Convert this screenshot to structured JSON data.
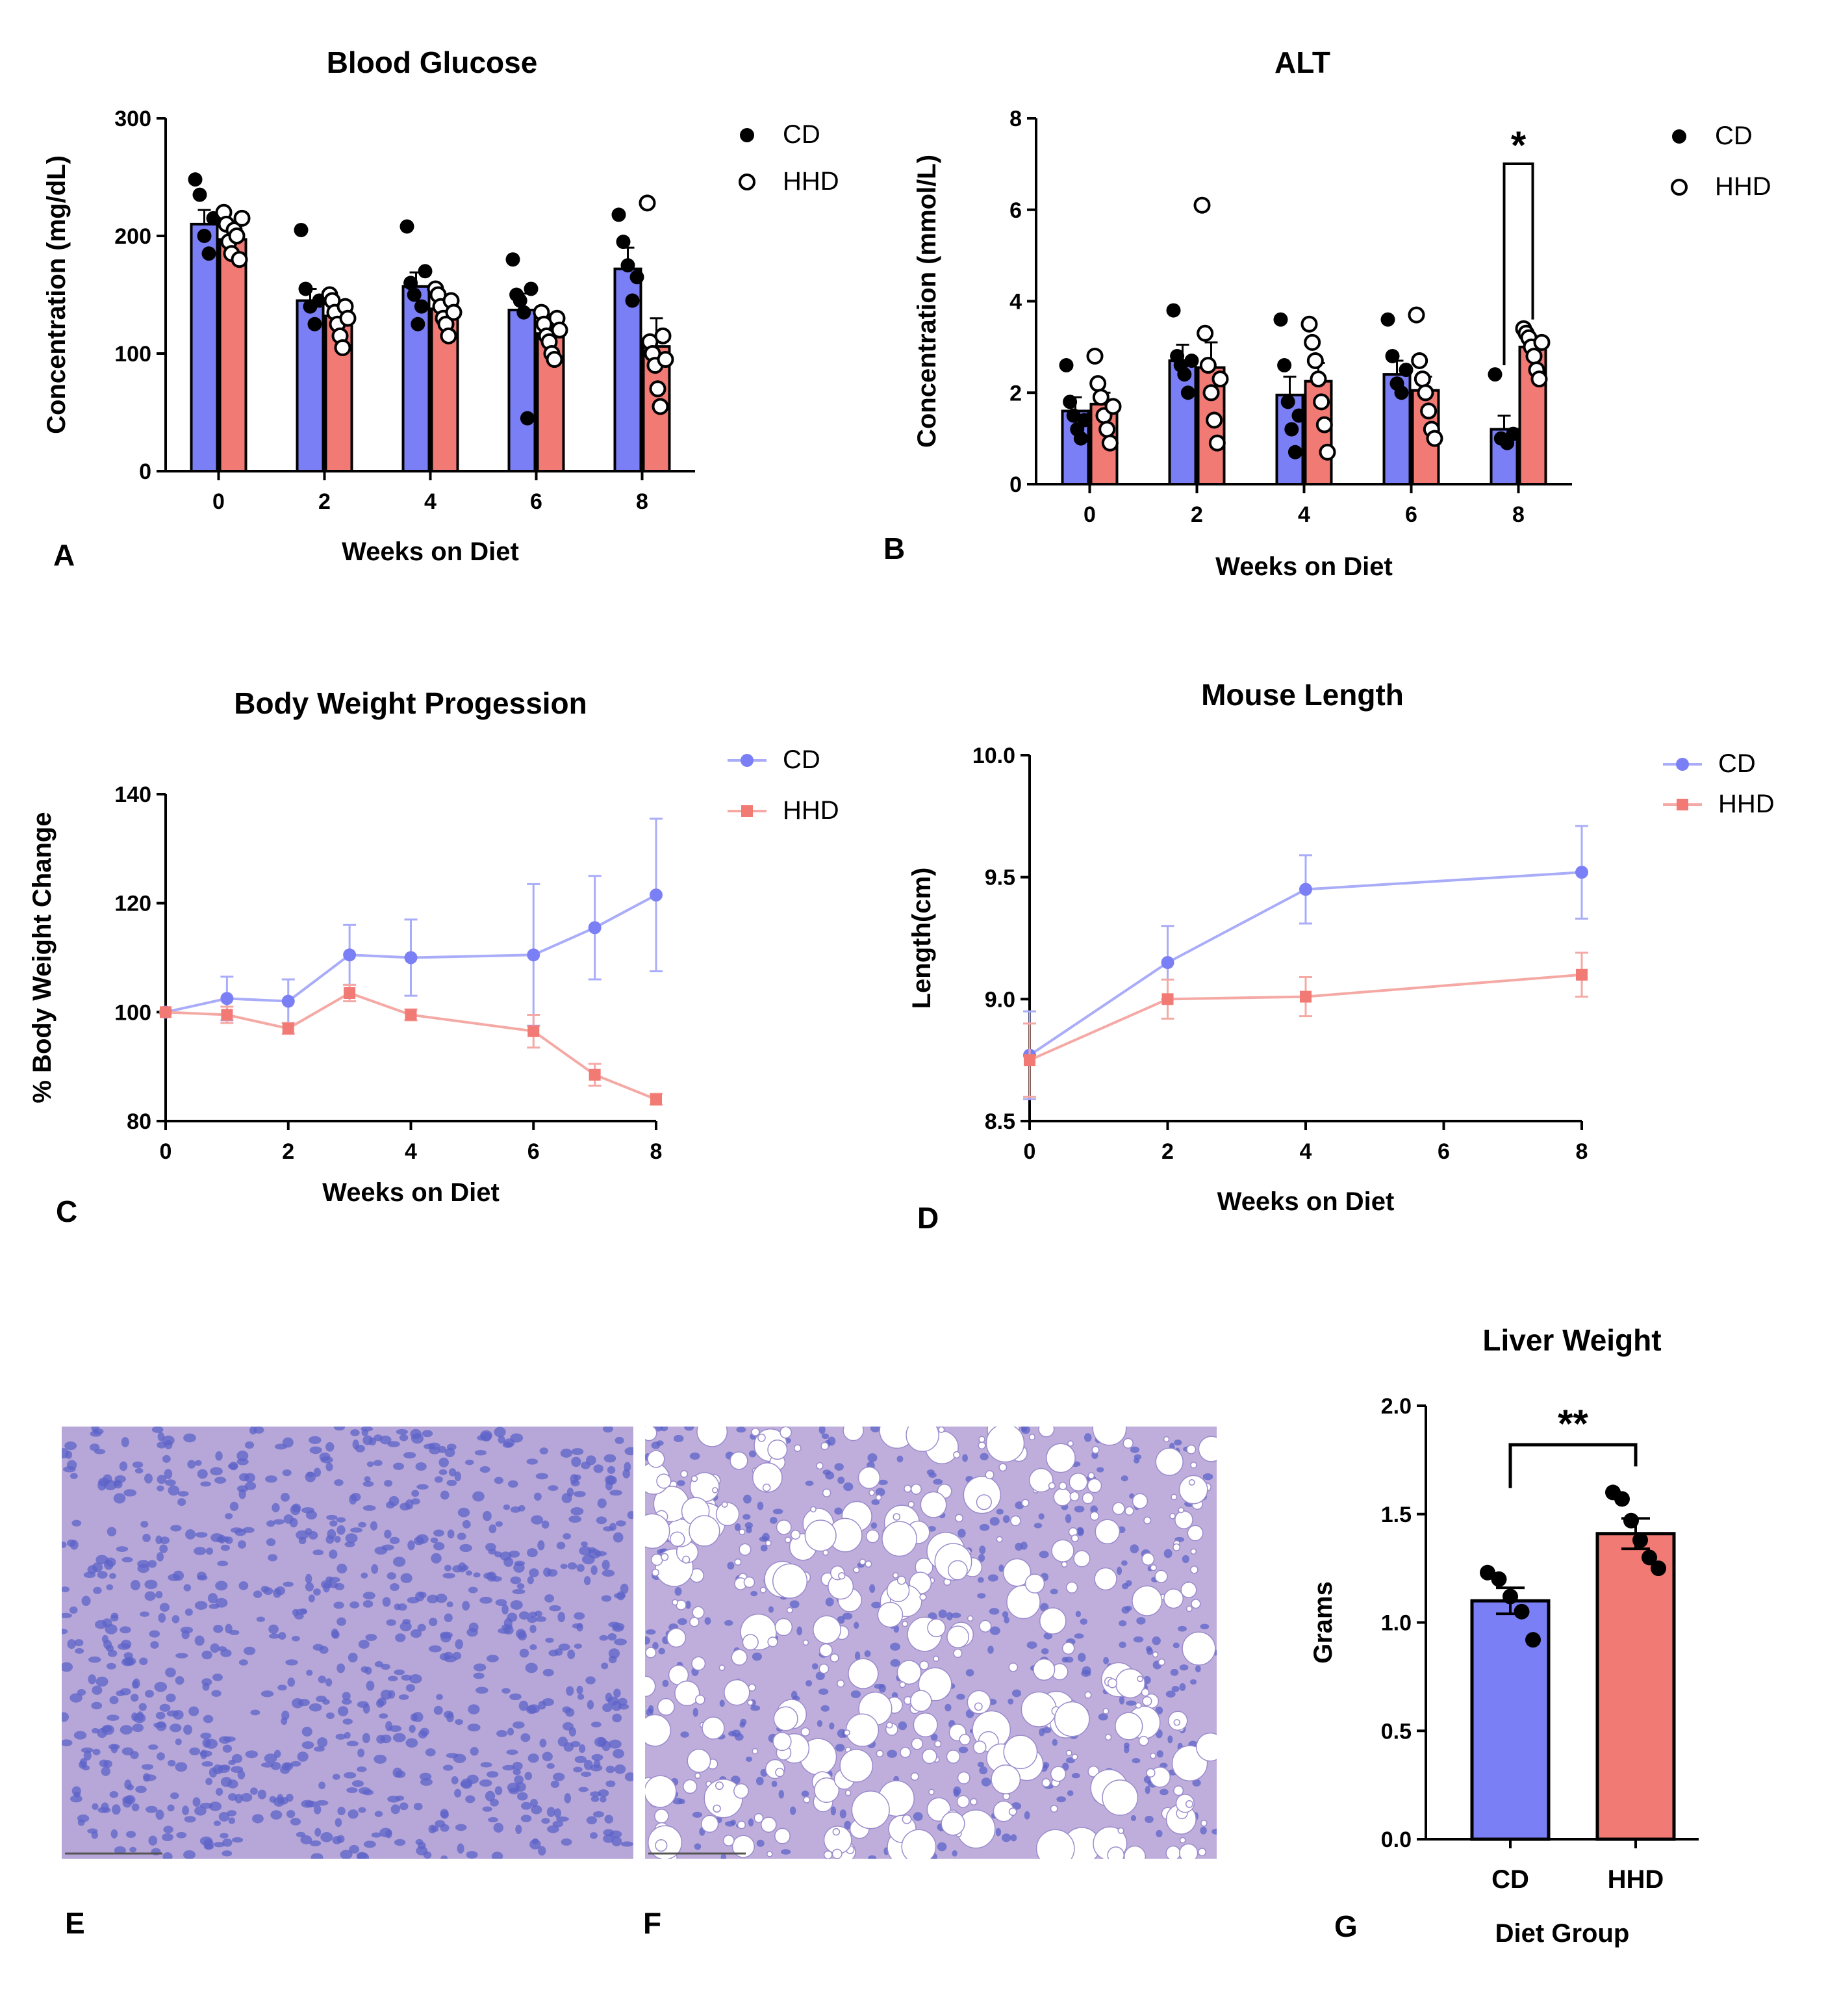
{
  "colors": {
    "cd": "#7b7ff5",
    "hhd": "#f27a74",
    "cd_line": "#a9acf8",
    "hhd_line": "#f5a9a5",
    "histo_bg": "#b7a6d8",
    "histo_nuclei": "#5c63c8"
  },
  "panel_letters": [
    "A",
    "B",
    "C",
    "D",
    "E",
    "F",
    "G"
  ],
  "chart_data": [
    {
      "panel": "A",
      "type": "bar",
      "title": "Blood Glucose",
      "xlabel": "Weeks on Diet",
      "ylabel": "Concentration (mg/dL)",
      "ylim": [
        0,
        300
      ],
      "yticks": [
        0,
        100,
        200,
        300
      ],
      "categories": [
        "0",
        "2",
        "4",
        "6",
        "8"
      ],
      "legend": [
        "CD",
        "HHD"
      ],
      "series": [
        {
          "name": "CD",
          "values": [
            210,
            145,
            157,
            137,
            172
          ],
          "errors": [
            12,
            10,
            12,
            14,
            18
          ],
          "points": [
            [
              248,
              235,
              200,
              185,
              215
            ],
            [
              205,
              155,
              140,
              125,
              145
            ],
            [
              208,
              160,
              150,
              125,
              140,
              170
            ],
            [
              180,
              150,
              145,
              135,
              45,
              155
            ],
            [
              218,
              195,
              175,
              145,
              165
            ]
          ]
        },
        {
          "name": "HHD",
          "values": [
            197,
            132,
            138,
            117,
            106
          ],
          "errors": [
            8,
            8,
            8,
            7,
            24
          ],
          "points": [
            [
              220,
              210,
              195,
              185,
              205,
              200,
              180,
              215
            ],
            [
              150,
              145,
              135,
              125,
              115,
              105,
              140,
              130
            ],
            [
              155,
              150,
              140,
              130,
              125,
              115,
              145,
              135
            ],
            [
              135,
              125,
              115,
              110,
              100,
              95,
              130,
              120
            ],
            [
              228,
              110,
              100,
              90,
              70,
              55,
              115,
              95
            ]
          ]
        }
      ],
      "annotations": []
    },
    {
      "panel": "B",
      "type": "bar",
      "title": "ALT",
      "xlabel": "Weeks on Diet",
      "ylabel": "Concentration (mmol/L)",
      "ylim": [
        0,
        8
      ],
      "yticks": [
        0,
        2,
        4,
        6,
        8
      ],
      "categories": [
        "0",
        "2",
        "4",
        "6",
        "8"
      ],
      "legend": [
        "CD",
        "HHD"
      ],
      "series": [
        {
          "name": "CD",
          "values": [
            1.6,
            2.7,
            1.95,
            2.4,
            1.2
          ],
          "errors": [
            0.3,
            0.35,
            0.4,
            0.3,
            0.3
          ],
          "points": [
            [
              2.6,
              1.8,
              1.5,
              1.2,
              1.0,
              1.4
            ],
            [
              3.8,
              2.8,
              2.6,
              2.4,
              2.0,
              2.7
            ],
            [
              3.6,
              2.6,
              1.8,
              1.2,
              0.7,
              1.5
            ],
            [
              3.6,
              2.8,
              2.2,
              2.0,
              2.5
            ],
            [
              2.4,
              1.0,
              0.9,
              1.1
            ]
          ]
        },
        {
          "name": "HHD",
          "values": [
            1.75,
            2.55,
            2.25,
            2.05,
            3.0
          ],
          "errors": [
            0.25,
            0.55,
            0.4,
            0.3,
            0.2
          ],
          "points": [
            [
              2.8,
              2.2,
              1.9,
              1.5,
              1.2,
              0.9,
              1.7
            ],
            [
              6.1,
              3.3,
              2.6,
              2.0,
              1.4,
              0.9,
              2.3
            ],
            [
              3.5,
              3.1,
              2.7,
              2.3,
              1.8,
              1.3,
              0.7
            ],
            [
              3.7,
              2.7,
              2.3,
              2.0,
              1.6,
              1.2,
              1.0
            ],
            [
              3.4,
              3.3,
              3.2,
              3.0,
              2.8,
              2.5,
              2.3,
              3.1
            ]
          ]
        }
      ],
      "annotations": [
        {
          "text": "*",
          "between": [
            "CD",
            "HHD"
          ],
          "category": "8"
        }
      ]
    },
    {
      "panel": "C",
      "type": "line",
      "title": "Body Weight Progession",
      "xlabel": "Weeks on Diet",
      "ylabel": "% Body Weight Change",
      "xlim": [
        0,
        8
      ],
      "ylim": [
        80,
        140
      ],
      "xticks": [
        0,
        2,
        4,
        6,
        8
      ],
      "yticks": [
        80,
        100,
        120,
        140
      ],
      "legend": [
        "CD",
        "HHD"
      ],
      "series": [
        {
          "name": "CD",
          "marker": "circle",
          "x": [
            0,
            1,
            2,
            3,
            4,
            6,
            7,
            8
          ],
          "y": [
            100,
            102.5,
            102,
            110.5,
            110,
            110.5,
            115.5,
            121.5
          ],
          "errors": [
            0,
            4,
            4,
            5.5,
            7,
            13,
            9.5,
            14
          ]
        },
        {
          "name": "HHD",
          "marker": "square",
          "x": [
            0,
            1,
            2,
            3,
            4,
            6,
            7,
            8
          ],
          "y": [
            100,
            99.5,
            97,
            103.5,
            99.5,
            96.5,
            88.5,
            84
          ],
          "errors": [
            0,
            1.5,
            1,
            1.5,
            1,
            3,
            2,
            1
          ]
        }
      ]
    },
    {
      "panel": "D",
      "type": "line",
      "title": "Mouse Length",
      "xlabel": "Weeks on Diet",
      "ylabel": "Length(cm)",
      "xlim": [
        0,
        8
      ],
      "ylim": [
        8.5,
        10.0
      ],
      "xticks": [
        0,
        2,
        4,
        6,
        8
      ],
      "yticks": [
        "8.5",
        "9.0",
        "9.5",
        "10.0"
      ],
      "legend": [
        "CD",
        "HHD"
      ],
      "series": [
        {
          "name": "CD",
          "marker": "circle",
          "x": [
            0,
            2,
            4,
            8
          ],
          "y": [
            8.77,
            9.15,
            9.45,
            9.52
          ],
          "errors": [
            0.18,
            0.15,
            0.14,
            0.19
          ]
        },
        {
          "name": "HHD",
          "marker": "square",
          "x": [
            0,
            2,
            4,
            8
          ],
          "y": [
            8.75,
            9.0,
            9.01,
            9.1
          ],
          "errors": [
            0.15,
            0.08,
            0.08,
            0.09
          ]
        }
      ]
    },
    {
      "panel": "G",
      "type": "bar",
      "title": "Liver Weight",
      "xlabel": "Diet Group",
      "ylabel": "Grams",
      "ylim": [
        0,
        2.0
      ],
      "yticks": [
        "0.0",
        "0.5",
        "1.0",
        "1.5",
        "2.0"
      ],
      "categories": [
        "CD",
        "HHD"
      ],
      "series": [
        {
          "name": "Liver Weight",
          "values": [
            1.1,
            1.41
          ],
          "errors": [
            0.06,
            0.07
          ],
          "points": [
            [
              1.23,
              1.2,
              1.12,
              1.05,
              0.92
            ],
            [
              1.6,
              1.57,
              1.47,
              1.38,
              1.3,
              1.25
            ]
          ]
        }
      ],
      "annotations": [
        {
          "text": "**",
          "between": [
            "CD",
            "HHD"
          ]
        }
      ]
    }
  ]
}
